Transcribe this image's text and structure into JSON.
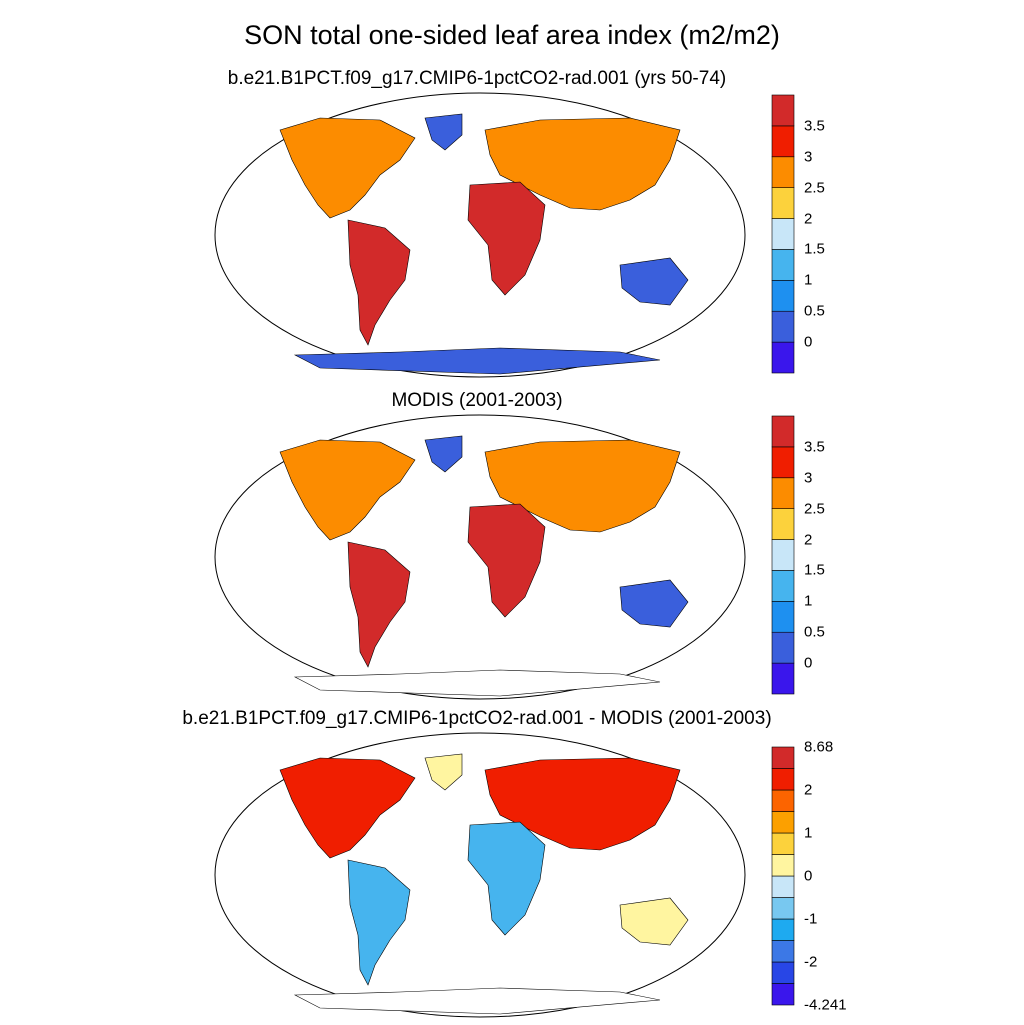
{
  "title": "SON total one-sided leaf area index (m2/m2)",
  "panels": [
    {
      "title": "b.e21.B1PCT.f09_g17.CMIP6-1pctCO2-rad.001 (yrs 50-74)",
      "colorbar": {
        "colors": [
          "#3a16ec",
          "#3a5fdc",
          "#1e90f0",
          "#46b4ee",
          "#c8e6f8",
          "#fcd23c",
          "#fc8c00",
          "#f01e00",
          "#d22a2a"
        ],
        "labels": [
          "0",
          "0.5",
          "1",
          "1.5",
          "2",
          "2.5",
          "3",
          "3.5"
        ]
      },
      "regions": {
        "ocean": "#ffffff",
        "land": "#3a5fdc",
        "tropics": "#d22a2a",
        "boreal": "#fc8c00"
      }
    },
    {
      "title": "MODIS (2001-2003)",
      "colorbar": {
        "colors": [
          "#3a16ec",
          "#3a5fdc",
          "#1e90f0",
          "#46b4ee",
          "#c8e6f8",
          "#fcd23c",
          "#fc8c00",
          "#f01e00",
          "#d22a2a"
        ],
        "labels": [
          "0",
          "0.5",
          "1",
          "1.5",
          "2",
          "2.5",
          "3",
          "3.5"
        ]
      },
      "regions": {
        "ocean": "#ffffff",
        "land": "#3a5fdc",
        "tropics": "#d22a2a",
        "boreal": "#fc8c00"
      }
    },
    {
      "title": "b.e21.B1PCT.f09_g17.CMIP6-1pctCO2-rad.001 - MODIS (2001-2003)",
      "colorbar": {
        "colors": [
          "#3a16ec",
          "#2846e6",
          "#3c78e6",
          "#1eaaf0",
          "#78c8f0",
          "#c8e6f8",
          "#fff5a0",
          "#fcd23c",
          "#fca000",
          "#fc6400",
          "#f01e00",
          "#d22a2a"
        ],
        "labels": [
          "-4.241",
          "",
          "-2",
          "",
          "-1",
          "",
          "0",
          "",
          "1",
          "",
          "2",
          "",
          "8.68"
        ]
      },
      "regions": {
        "ocean": "#ffffff",
        "land": "#fff5a0",
        "tropics": "#46b4ee",
        "boreal": "#f01e00"
      }
    }
  ]
}
